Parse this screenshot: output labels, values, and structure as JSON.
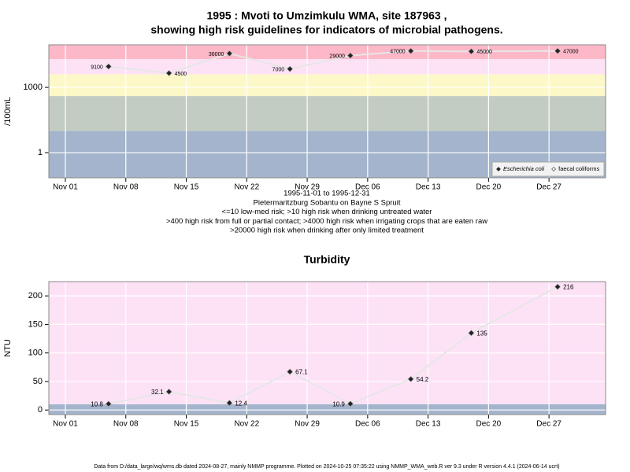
{
  "title": [
    "1995 : Mvoti to Umzimkulu WMA, site 187963 ,",
    "showing high risk guidelines for indicators of microbial pathogens."
  ],
  "chart_data": [
    {
      "type": "line",
      "log_y": true,
      "ylabel": "/100mL",
      "x": [
        "1995-11-06",
        "1995-11-13",
        "1995-11-20",
        "1995-11-27",
        "1995-12-04",
        "1995-12-11",
        "1995-12-18",
        "1995-12-28"
      ],
      "series": [
        {
          "name": "Escherichia coli",
          "color": "#222222",
          "values": [
            9100,
            4500,
            36000,
            7000,
            29000,
            47000,
            45000,
            47000
          ]
        },
        {
          "name": "faecal coliforms",
          "color": "#ffffff",
          "values": [
            null,
            null,
            null,
            null,
            null,
            null,
            null,
            null
          ]
        }
      ],
      "xlim": [
        "1995-11-01",
        "1995-12-31"
      ],
      "xticks": [
        {
          "value": "1995-11-01",
          "label": "Nov 01"
        },
        {
          "value": "1995-11-08",
          "label": "Nov 08"
        },
        {
          "value": "1995-11-15",
          "label": "Nov 15"
        },
        {
          "value": "1995-11-22",
          "label": "Nov 22"
        },
        {
          "value": "1995-11-29",
          "label": "Nov 29"
        },
        {
          "value": "1995-12-06",
          "label": "Dec 06"
        },
        {
          "value": "1995-12-13",
          "label": "Dec 13"
        },
        {
          "value": "1995-12-20",
          "label": "Dec 20"
        },
        {
          "value": "1995-12-27",
          "label": "Dec 27"
        }
      ],
      "ylim": [
        0.07,
        90000
      ],
      "yticks": [
        1,
        1000
      ],
      "grid": true,
      "band_limits": [
        10,
        400,
        4000,
        20000
      ],
      "band_colors": [
        "#a3b4cc",
        "#c3ccc2",
        "#fdf8c8",
        "#fde2f6",
        "#fdb8c8"
      ],
      "legend": "bottom-right",
      "notes": [
        "1995-11-01 to 1995-12-31",
        "Pietermaritzburg Sobantu on Bayne S Spruit",
        "<=10 low-med risk; >10 high risk when drinking untreated water",
        ">400 high risk from full or partial contact; >4000 high risk when irrigating crops that are eaten raw",
        ">20000 high risk when drinking after only limited treatment"
      ]
    },
    {
      "type": "line",
      "log_y": false,
      "title": "Turbidity",
      "ylabel": "NTU",
      "x": [
        "1995-11-06",
        "1995-11-13",
        "1995-11-20",
        "1995-11-27",
        "1995-12-04",
        "1995-12-11",
        "1995-12-18",
        "1995-12-28"
      ],
      "series": [
        {
          "name": "Turbidity",
          "color": "#222222",
          "values": [
            10.8,
            32.1,
            12.4,
            67.1,
            10.9,
            54.2,
            135,
            216
          ]
        }
      ],
      "xlim": [
        "1995-11-01",
        "1995-12-31"
      ],
      "xticks": [
        {
          "value": "1995-11-01",
          "label": "Nov 01"
        },
        {
          "value": "1995-11-08",
          "label": "Nov 08"
        },
        {
          "value": "1995-11-15",
          "label": "Nov 15"
        },
        {
          "value": "1995-11-22",
          "label": "Nov 22"
        },
        {
          "value": "1995-11-29",
          "label": "Nov 29"
        },
        {
          "value": "1995-12-06",
          "label": "Dec 06"
        },
        {
          "value": "1995-12-13",
          "label": "Dec 13"
        },
        {
          "value": "1995-12-20",
          "label": "Dec 20"
        },
        {
          "value": "1995-12-27",
          "label": "Dec 27"
        }
      ],
      "ylim": [
        -8,
        225
      ],
      "yticks": [
        0,
        50,
        100,
        150,
        200
      ],
      "grid": true,
      "band_limits": [
        10
      ],
      "band_colors": [
        "#a3b4cc",
        "#fde2f6"
      ]
    }
  ],
  "footer": "Data from D:/data_large/wq/wms.db dated 2024-08-27, mainly NMMP programme. Plotted on 2024-10-25 07:35:22 using NMMP_WMA_web.R ver 9.3 under R version 4.4.1 (2024-06-14 ucrt)"
}
